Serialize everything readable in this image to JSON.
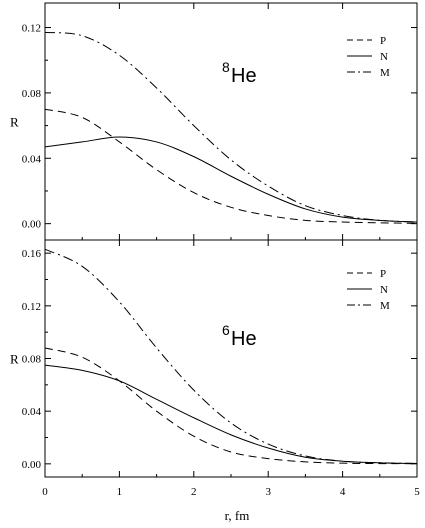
{
  "chart_data": [
    {
      "type": "line",
      "title": "8He",
      "title_sup": "8",
      "title_main": "He",
      "ylabel": "R",
      "xlabel": "r, fm",
      "xlim": [
        0,
        5
      ],
      "ylim": [
        -0.01,
        0.135
      ],
      "yticks": [
        "0.00",
        "0.04",
        "0.08",
        "0.12"
      ],
      "ytick_values": [
        0.0,
        0.04,
        0.08,
        0.12
      ],
      "legend_position": "top-right",
      "series": [
        {
          "name": "P",
          "style": "dashed",
          "x": [
            0,
            0.5,
            1,
            1.5,
            2,
            2.5,
            3,
            3.5,
            4,
            4.5,
            5
          ],
          "y": [
            0.07,
            0.065,
            0.05,
            0.033,
            0.019,
            0.01,
            0.005,
            0.002,
            0.001,
            0.0005,
            0.0002
          ]
        },
        {
          "name": "N",
          "style": "solid",
          "x": [
            0,
            0.5,
            1,
            1.5,
            2,
            2.5,
            3,
            3.5,
            4,
            4.5,
            5
          ],
          "y": [
            0.047,
            0.05,
            0.053,
            0.05,
            0.041,
            0.029,
            0.018,
            0.009,
            0.004,
            0.002,
            0.001
          ]
        },
        {
          "name": "M",
          "style": "dashdot",
          "x": [
            0,
            0.5,
            1,
            1.5,
            2,
            2.5,
            3,
            3.5,
            4,
            4.5,
            5
          ],
          "y": [
            0.117,
            0.115,
            0.103,
            0.083,
            0.06,
            0.039,
            0.023,
            0.011,
            0.005,
            0.002,
            0.001
          ]
        }
      ]
    },
    {
      "type": "line",
      "title": "6He",
      "title_sup": "6",
      "title_main": "He",
      "ylabel": "R",
      "xlabel": "r, fm",
      "xlim": [
        0,
        5
      ],
      "ylim": [
        -0.01,
        0.17
      ],
      "yticks": [
        "0.00",
        "0.04",
        "0.08",
        "0.12",
        "0.16"
      ],
      "ytick_values": [
        0.0,
        0.04,
        0.08,
        0.12,
        0.16
      ],
      "xticks": [
        "0",
        "1",
        "2",
        "3",
        "4",
        "5"
      ],
      "xtick_values": [
        0,
        1,
        2,
        3,
        4,
        5
      ],
      "legend_position": "top-right",
      "series": [
        {
          "name": "P",
          "style": "dashed",
          "x": [
            0,
            0.5,
            1,
            1.5,
            2,
            2.5,
            3,
            3.5,
            4,
            4.5,
            5
          ],
          "y": [
            0.088,
            0.081,
            0.063,
            0.04,
            0.021,
            0.009,
            0.004,
            0.0015,
            0.0005,
            0.0002,
            0.0001
          ]
        },
        {
          "name": "N",
          "style": "solid",
          "x": [
            0,
            0.5,
            1,
            1.5,
            2,
            2.5,
            3,
            3.5,
            4,
            4.5,
            5
          ],
          "y": [
            0.075,
            0.071,
            0.063,
            0.049,
            0.035,
            0.022,
            0.012,
            0.005,
            0.002,
            0.0008,
            0.0003
          ]
        },
        {
          "name": "M",
          "style": "dashdot",
          "x": [
            0,
            0.5,
            1,
            1.5,
            2,
            2.5,
            3,
            3.5,
            4,
            4.5,
            5
          ],
          "y": [
            0.163,
            0.15,
            0.123,
            0.088,
            0.056,
            0.031,
            0.015,
            0.006,
            0.002,
            0.0008,
            0.0003
          ]
        }
      ]
    }
  ]
}
